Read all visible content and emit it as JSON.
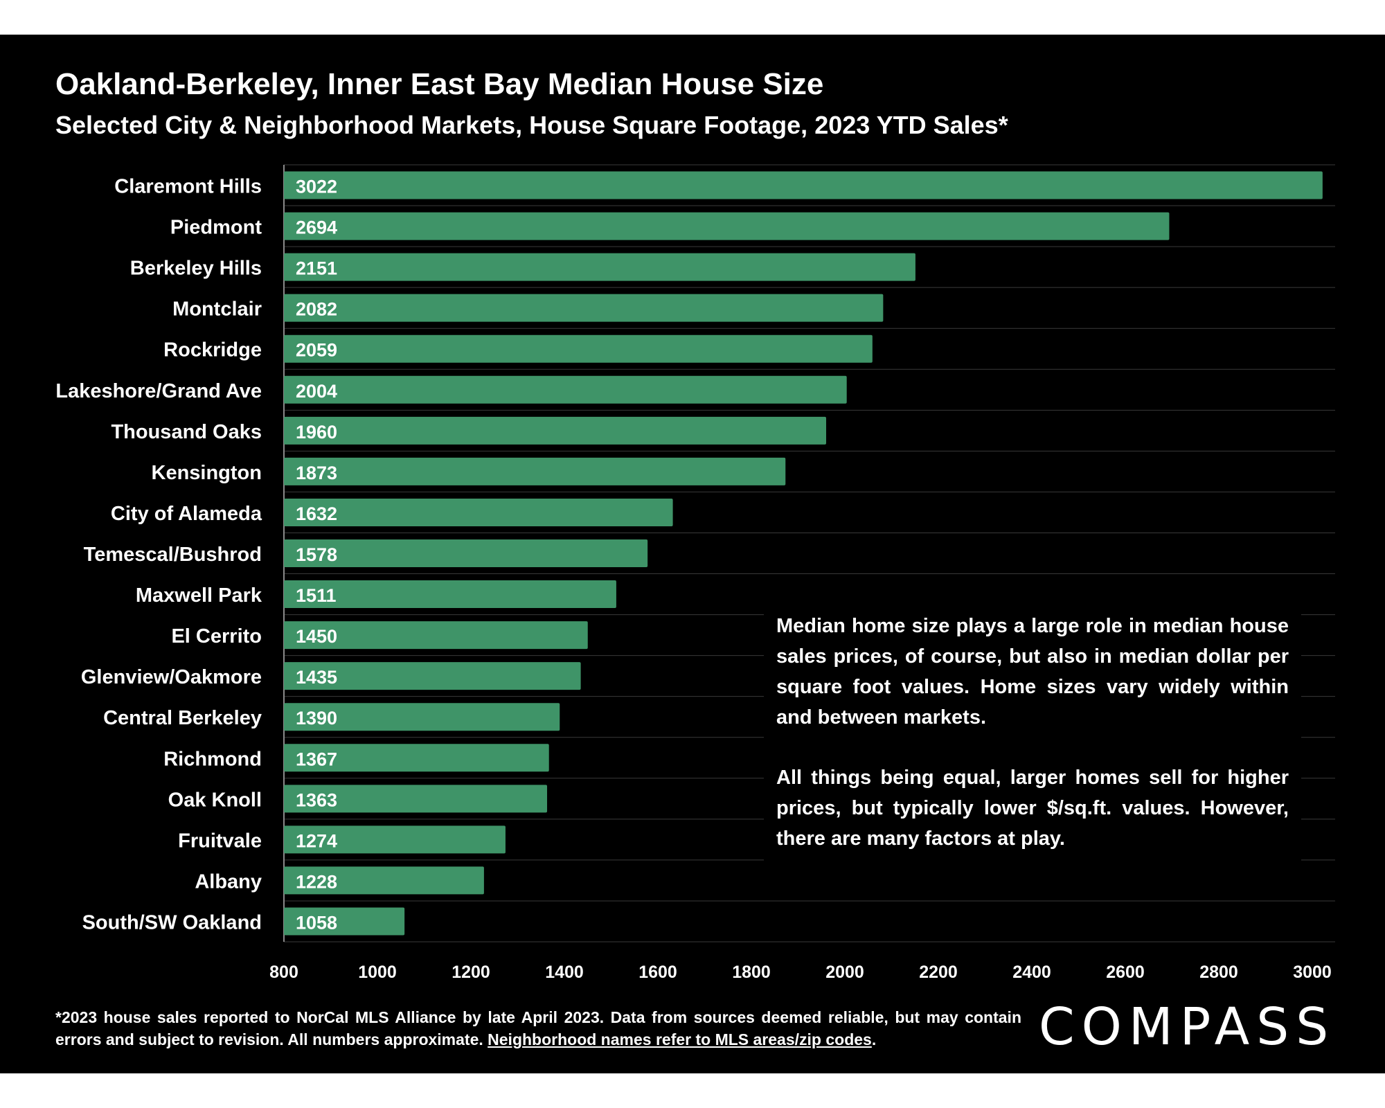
{
  "colors": {
    "background": "#000000",
    "bar": "#3f9468",
    "text": "#ffffff",
    "grid": "#3a3a3a"
  },
  "header": {
    "title": "Oakland-Berkeley, Inner East Bay Median House Size",
    "subtitle": "Selected City & Neighborhood Markets, House Square Footage, 2023 YTD Sales*"
  },
  "callout": {
    "paragraph1": "Median home size plays a large role in median house sales prices, of course, but also in median dollar per square foot values. Home sizes vary widely within and between markets.",
    "paragraph2": "All things being equal, larger homes sell for higher prices, but typically lower $/sq.ft. values. However, there are many factors at play."
  },
  "footnote": {
    "text": "*2023 house sales reported to NorCal MLS Alliance by late April 2023. Data from sources deemed reliable, but may contain errors and subject to revision. All numbers approximate. ",
    "link_text": "Neighborhood names refer to MLS areas/zip codes",
    "end": "."
  },
  "logo": {
    "text": "COMPASS"
  },
  "chart_data": {
    "type": "bar",
    "orientation": "horizontal",
    "categories": [
      "Claremont Hills",
      "Piedmont",
      "Berkeley Hills",
      "Montclair",
      "Rockridge",
      "Lakeshore/Grand Ave",
      "Thousand Oaks",
      "Kensington",
      "City of Alameda",
      "Temescal/Bushrod",
      "Maxwell Park",
      "El Cerrito",
      "Glenview/Oakmore",
      "Central Berkeley",
      "Richmond",
      "Oak Knoll",
      "Fruitvale",
      "Albany",
      "South/SW Oakland"
    ],
    "values": [
      3022,
      2694,
      2151,
      2082,
      2059,
      2004,
      1960,
      1873,
      1632,
      1578,
      1511,
      1450,
      1435,
      1390,
      1367,
      1363,
      1274,
      1228,
      1058
    ],
    "xlim": [
      800,
      3050
    ],
    "xticks": [
      800,
      1000,
      1200,
      1400,
      1600,
      1800,
      2000,
      2200,
      2400,
      2600,
      2800,
      3000
    ],
    "data_labels": true,
    "grid": true,
    "legend": "none"
  }
}
